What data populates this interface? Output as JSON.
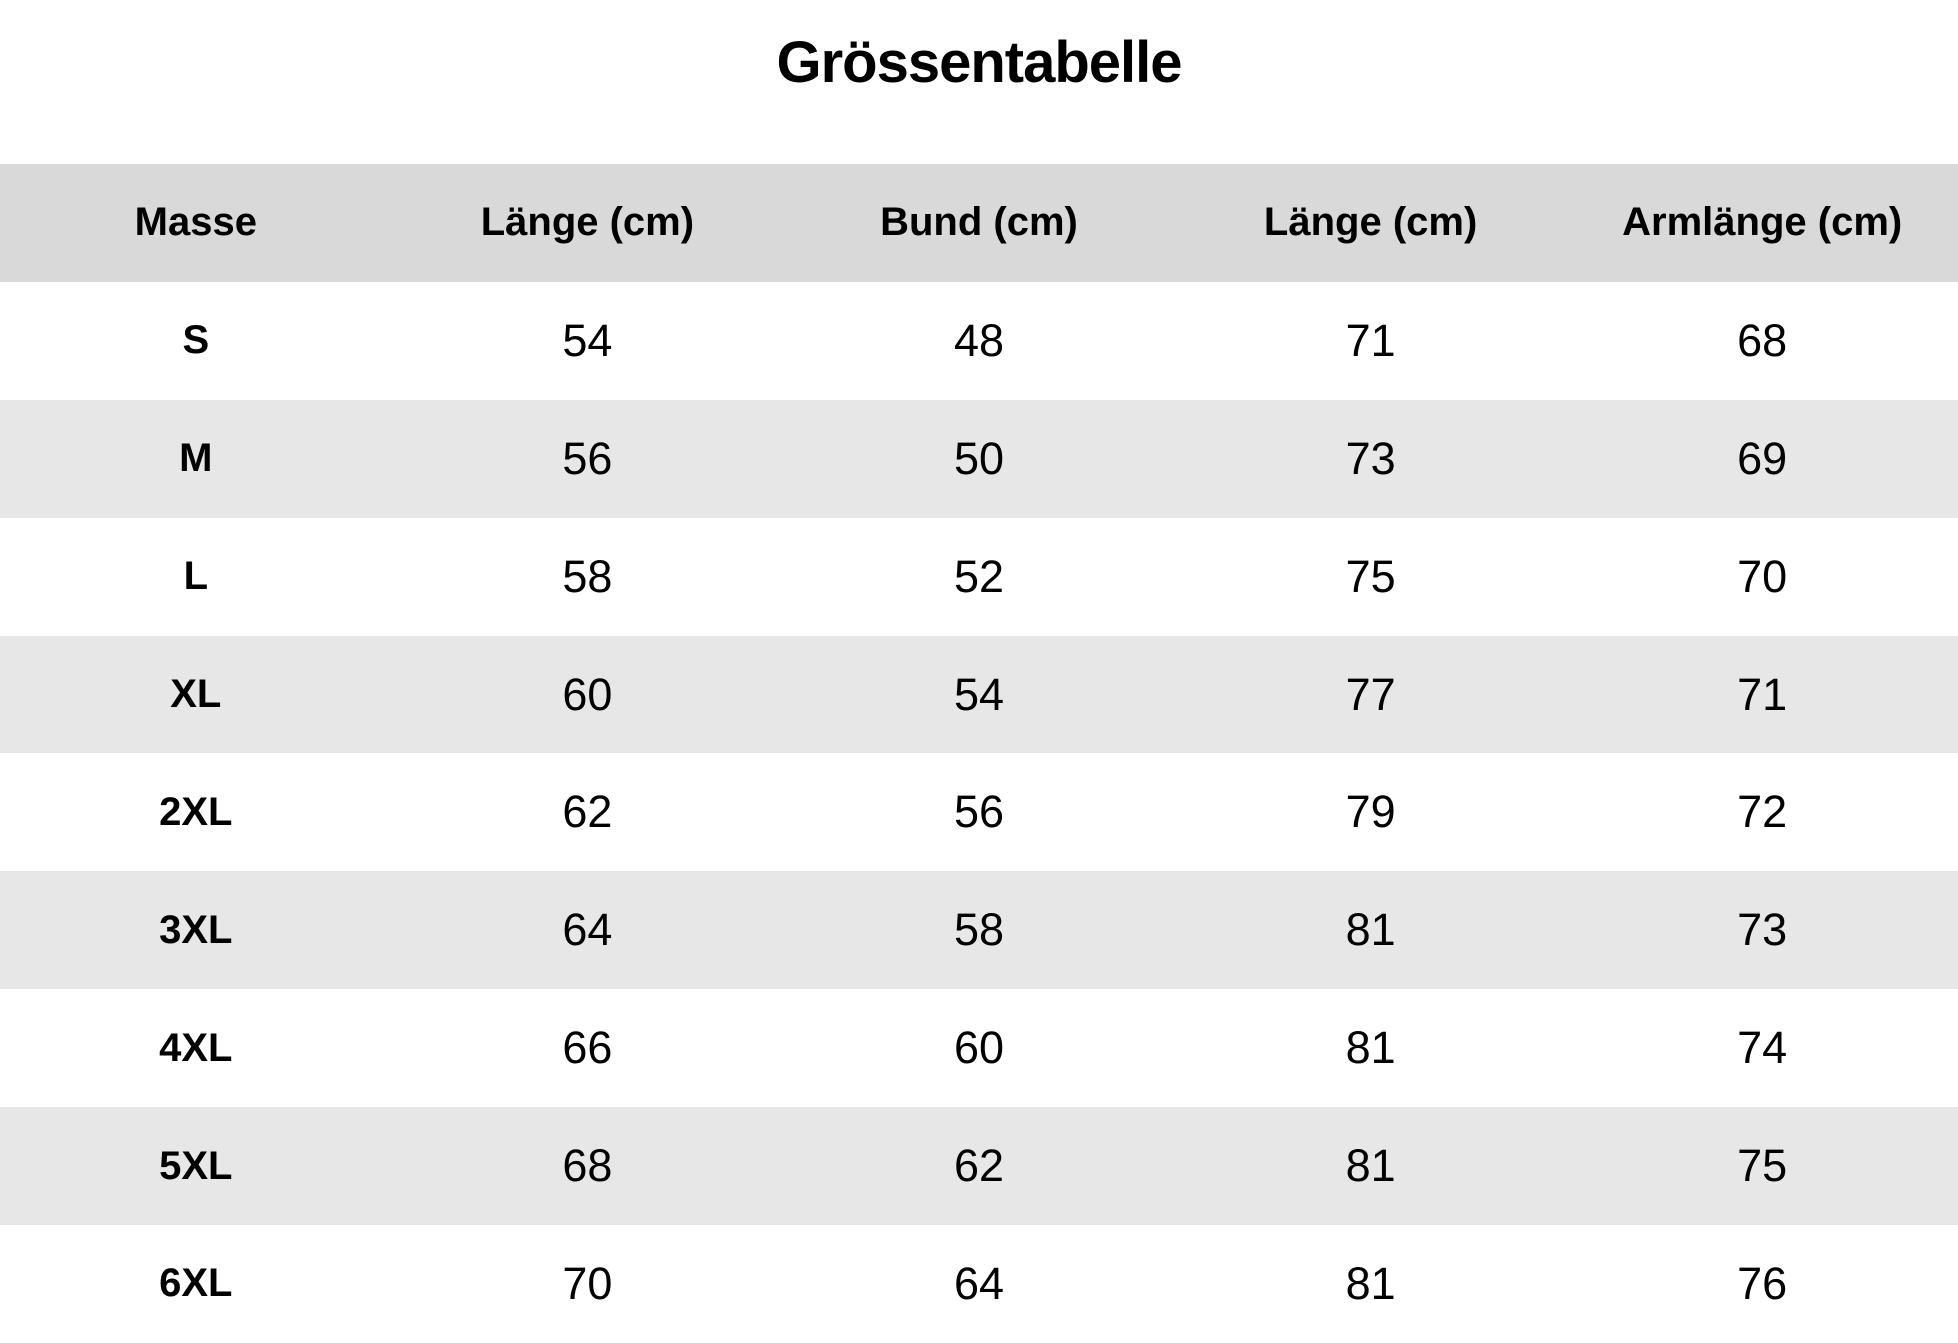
{
  "title": "Grössentabelle",
  "colors": {
    "background": "#ffffff",
    "header_row_bg": "#d9d9d9",
    "alt_row_bg": "#e7e7e7",
    "row_bg": "#ffffff",
    "text": "#000000"
  },
  "chart_data": {
    "type": "table",
    "title": "Grössentabelle",
    "columns": [
      "Masse",
      "Länge (cm)",
      "Bund (cm)",
      "Länge (cm)",
      "Armlänge (cm)"
    ],
    "rows": [
      [
        "S",
        54,
        48,
        71,
        68
      ],
      [
        "M",
        56,
        50,
        73,
        69
      ],
      [
        "L",
        58,
        52,
        75,
        70
      ],
      [
        "XL",
        60,
        54,
        77,
        71
      ],
      [
        "2XL",
        62,
        56,
        79,
        72
      ],
      [
        "3XL",
        64,
        58,
        81,
        73
      ],
      [
        "4XL",
        66,
        60,
        81,
        74
      ],
      [
        "5XL",
        68,
        62,
        81,
        75
      ],
      [
        "6XL",
        70,
        64,
        81,
        76
      ]
    ],
    "layout": {
      "columns_equal_width": true,
      "zebra_striping": true,
      "first_data_row_bg": "white"
    }
  }
}
